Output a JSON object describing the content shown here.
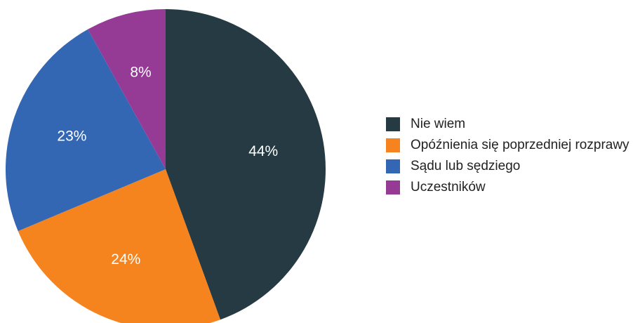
{
  "chart_data": {
    "type": "pie",
    "categories": [
      "Nie wiem",
      "Opóźnienia się poprzedniej rozprawy",
      "Sądu lub sędziego",
      "Uczestników"
    ],
    "values": [
      44,
      24,
      23,
      8
    ],
    "value_labels": [
      "44%",
      "24%",
      "23%",
      "8%"
    ],
    "colors": [
      "#263a44",
      "#f5841f",
      "#3366b3",
      "#953b96"
    ],
    "legend": "right"
  }
}
